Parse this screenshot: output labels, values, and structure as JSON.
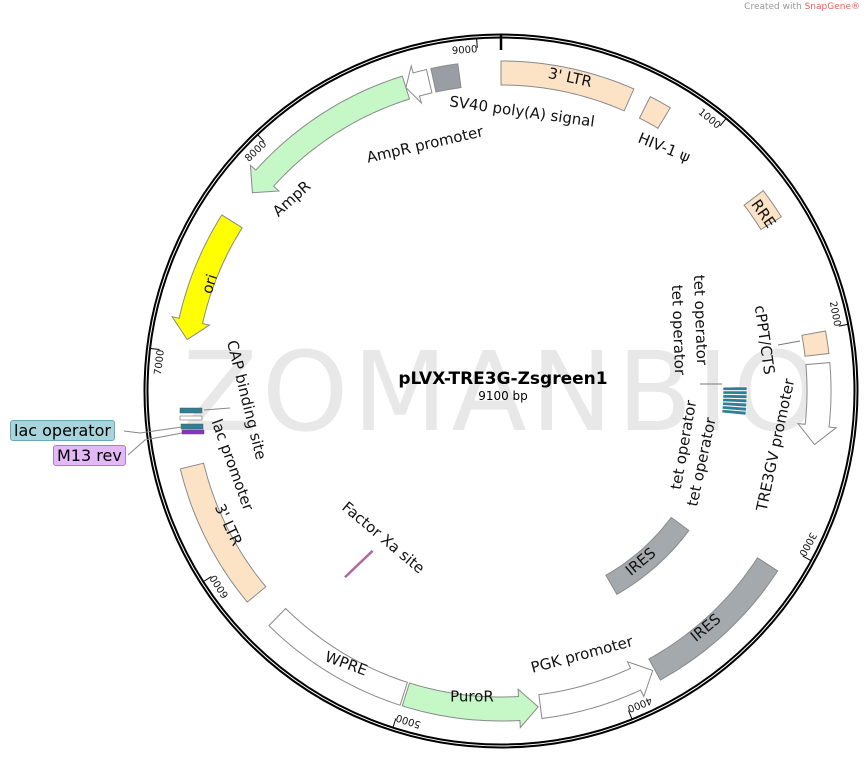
{
  "credit": {
    "prefix": "Created with ",
    "brand": "SnapGene®"
  },
  "watermark": "ZOMANBIO",
  "plasmid": {
    "name": "pLVX-TRE3G-Zsgreen1",
    "length_label": "9100 bp",
    "length_bp": 9100
  },
  "ticks": [
    "1000",
    "2000",
    "3000",
    "4000",
    "5000",
    "6000",
    "7000",
    "8000",
    "9000"
  ],
  "features": [
    {
      "name": "3' LTR",
      "start": 0,
      "end": 600,
      "dir": "none",
      "color": "#fde3c6",
      "track": "outer"
    },
    {
      "name": "HIV-1 ψ",
      "start": 680,
      "end": 780,
      "dir": "none",
      "color": "#fde3c6",
      "track": "outer"
    },
    {
      "name": "RRE",
      "start": 1330,
      "end": 1470,
      "dir": "none",
      "color": "#fde3c6",
      "track": "outer"
    },
    {
      "name": "cPPT/CTS",
      "start": 2010,
      "end": 2110,
      "dir": "none",
      "color": "#fde3c6",
      "track": "outer"
    },
    {
      "name": "TRE3GV promoter",
      "start": 2150,
      "end": 2520,
      "dir": "fwd",
      "color": "#ffffff",
      "track": "outer"
    },
    {
      "name": "IRES",
      "start": 3110,
      "end": 3820,
      "dir": "none",
      "color": "#a4a9ae",
      "track": "outer"
    },
    {
      "name": "PGK promoter",
      "start": 3830,
      "end": 4370,
      "dir": "rev",
      "color": "#ffffff",
      "track": "outer"
    },
    {
      "name": "PuroR",
      "start": 4380,
      "end": 4990,
      "dir": "rev",
      "color": "#c6f7c6",
      "track": "outer"
    },
    {
      "name": "WPRE",
      "start": 5000,
      "end": 5680,
      "dir": "none",
      "color": "#ffffff",
      "track": "outer"
    },
    {
      "name": "3' LTR",
      "start": 5820,
      "end": 6480,
      "dir": "none",
      "color": "#fde3c6",
      "track": "outer"
    },
    {
      "name": "ori",
      "start": 7060,
      "end": 7640,
      "dir": "rev",
      "color": "#ffff00",
      "track": "outer"
    },
    {
      "name": "AmpR",
      "start": 7800,
      "end": 8660,
      "dir": "rev",
      "color": "#c6f7c6",
      "track": "outer"
    },
    {
      "name": "AmpR promoter",
      "start": 8660,
      "end": 8770,
      "dir": "rev",
      "color": "#ffffff",
      "track": "outer"
    },
    {
      "name": "SV40 poly(A) signal",
      "start": 8790,
      "end": 8910,
      "dir": "none",
      "color": "#9a9ea4",
      "track": "outer"
    },
    {
      "name": "IRES",
      "start": 3200,
      "end": 3800,
      "dir": "none",
      "color": "#a4a9ae",
      "track": "inner"
    },
    {
      "name": "Factor Xa site",
      "start": 5530,
      "end": 5560,
      "dir": "none",
      "color": "#b06a9a",
      "track": "inner"
    }
  ],
  "tet_operators": {
    "labels": [
      "tet operator",
      "tet operator",
      "tet operator",
      "tet operator"
    ],
    "start": 2250,
    "end": 2420,
    "color": "#2f7f95"
  },
  "lac_region": {
    "cap_site": {
      "name": "CAP binding site",
      "color": "#2f7f95"
    },
    "lac_promoter": {
      "name": "lac promoter",
      "color": "#ffffff"
    },
    "lac_operator": {
      "name": "lac operator",
      "color": "#2f7f95",
      "callout_bg": "#a9d4dc"
    },
    "m13_rev": {
      "name": "M13 rev",
      "color": "#8a2fc9",
      "callout_bg": "#e3b8f6"
    }
  }
}
